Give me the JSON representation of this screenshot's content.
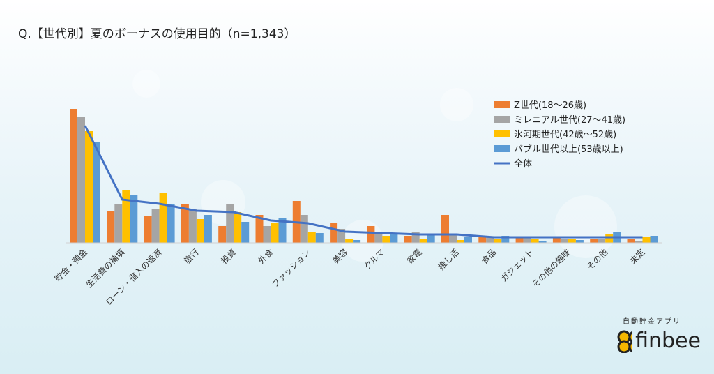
{
  "chart_data": {
    "type": "bar",
    "title": "Q.【世代別】夏のボーナスの使用目的（n=1,343）",
    "categories": [
      "貯金・預金",
      "生活費の補填",
      "ローン・借入の返済",
      "旅行",
      "投資",
      "外食",
      "ファッション",
      "美容",
      "クルマ",
      "家電",
      "推し活",
      "食品",
      "ガジェット",
      "その他の趣味",
      "その他",
      "未定"
    ],
    "series": [
      {
        "name": "Z世代(18～26歳)",
        "type": "bar",
        "color": "#ED7D31",
        "values": [
          48,
          11.5,
          9.5,
          14,
          6,
          10,
          15,
          7,
          6,
          2.5,
          10,
          2,
          2,
          2,
          1.5,
          1.5
        ]
      },
      {
        "name": "ミレニアル世代(27～41歳)",
        "type": "bar",
        "color": "#A5A5A5",
        "values": [
          45,
          14,
          12,
          12,
          14,
          6,
          10,
          5,
          3,
          4,
          3,
          2,
          2,
          1.5,
          1.5,
          0.5
        ]
      },
      {
        "name": "氷河期世代(42歳～52歳)",
        "type": "bar",
        "color": "#FFC000",
        "values": [
          40,
          19,
          18,
          8.5,
          11,
          7,
          4,
          1.5,
          2.5,
          1.5,
          1,
          1.5,
          1.5,
          1.5,
          3,
          2
        ]
      },
      {
        "name": "バブル世代以上(53歳以上)",
        "type": "bar",
        "color": "#5B9BD5",
        "values": [
          36,
          17,
          14,
          10,
          7.5,
          9,
          3.5,
          1,
          3,
          3,
          2,
          2.5,
          0.5,
          1,
          4,
          2.5
        ]
      },
      {
        "name": "全体",
        "type": "line",
        "color": "#4472C4",
        "values": [
          42,
          15.5,
          14,
          11.5,
          11,
          8,
          7,
          4,
          3.5,
          3,
          3,
          2,
          2,
          2,
          2,
          2
        ]
      }
    ],
    "ylim": [
      0,
      50
    ],
    "grid": false,
    "legend": "top-right"
  },
  "logo": {
    "sub": "自動貯金アプリ",
    "word": "finbee"
  }
}
